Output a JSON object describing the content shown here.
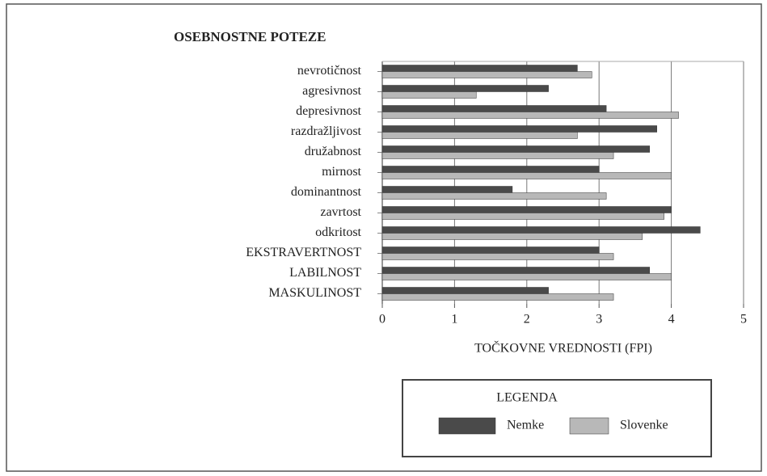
{
  "chart_data": {
    "type": "barh",
    "title": "OSEBNOSTNE POTEZE",
    "xlabel": "TOČKOVNE VREDNOSTI (FPI)",
    "legend_title": "LEGENDA",
    "categories": [
      "nevrotičnost",
      "agresivnost",
      "depresivnost",
      "razdražljivost",
      "družabnost",
      "mirnost",
      "dominantnost",
      "zavrtost",
      "odkritost",
      "EKSTRAVERTNOST",
      "LABILNOST",
      "MASKULINOST"
    ],
    "series": [
      {
        "name": "Nemke",
        "color": "#4a4a4a",
        "values": [
          2.7,
          2.3,
          3.1,
          3.8,
          3.7,
          3.0,
          1.8,
          4.0,
          4.4,
          3.0,
          3.7,
          2.3
        ]
      },
      {
        "name": "Slovenke",
        "color": "#b8b8b8",
        "values": [
          2.9,
          1.3,
          4.1,
          2.7,
          3.2,
          4.0,
          3.1,
          3.9,
          3.6,
          3.2,
          4.0,
          3.2
        ]
      }
    ],
    "xlim": [
      0,
      5
    ],
    "xticks": [
      0,
      1,
      2,
      3,
      4,
      5
    ],
    "grid": true
  }
}
